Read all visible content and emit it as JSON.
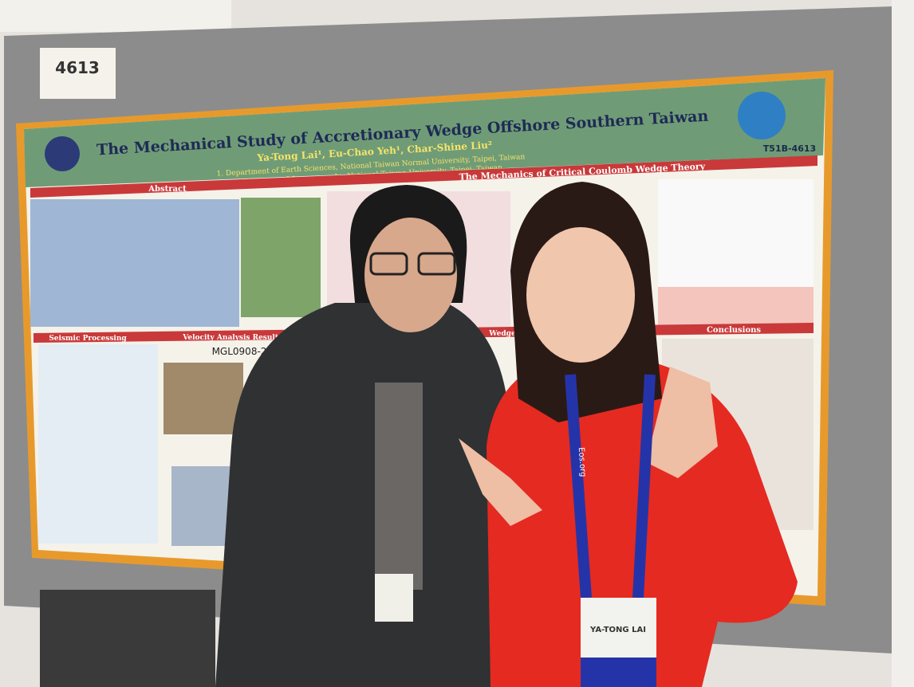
{
  "board_number": "4613",
  "poster": {
    "title": "The Mechanical Study of Accretionary Wedge Offshore Southern Taiwan",
    "authors": "Ya-Tong Lai¹, Eu-Chao Yeh¹, Char-Shine Liu²",
    "affiliations": [
      "1. Department of Earth Sciences, National Taiwan Normal University, Taipei, Taiwan",
      "2. Institute of Oceanography, National Taiwan University, Taipei, Taiwan"
    ],
    "session": "T51B-4613",
    "sections": {
      "abstract": "Abstract",
      "mechanics": "The Mechanics of Critical Coulomb Wedge Theory",
      "seismic": "Seismic Processing",
      "velocity": "Velocity Analysis Result and",
      "wedge": "Wedge",
      "conclusions": "Conclusions"
    },
    "figure_label": "MGL0908-2"
  },
  "badge": {
    "name": "YA-TONG LAI"
  },
  "lanyard": "Eos.org"
}
